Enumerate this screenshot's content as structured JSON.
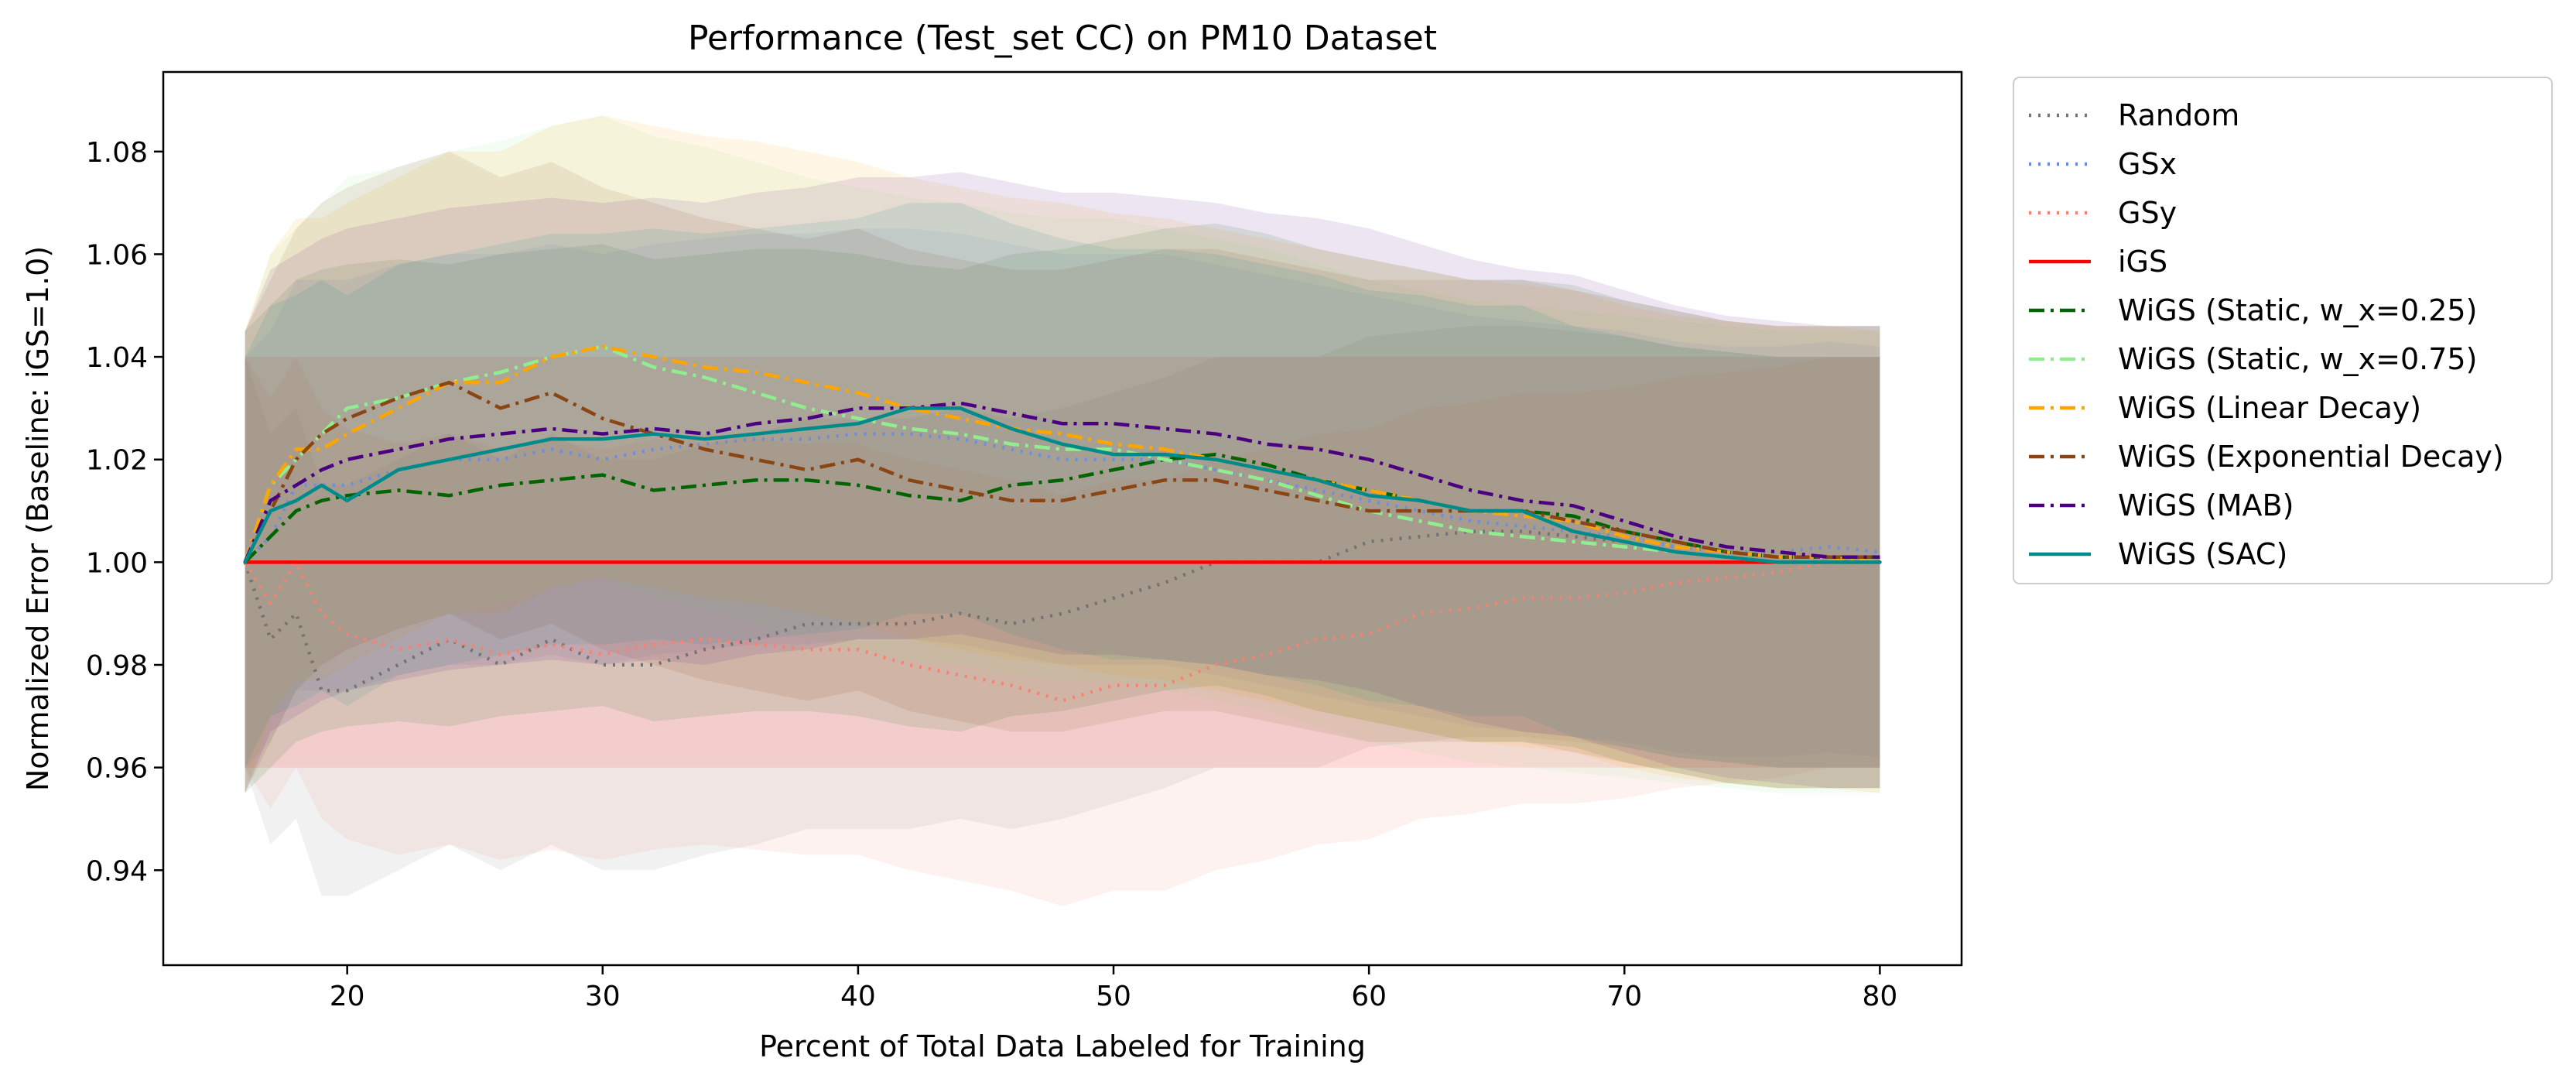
{
  "chart_data": {
    "type": "line",
    "title": "Performance (Test_set CC) on PM10 Dataset",
    "xlabel": "Percent of Total Data Labeled for Training",
    "ylabel": "Normalized Error (Baseline: iGS=1.0)",
    "xlim": [
      12.8,
      83.2
    ],
    "ylim": [
      0.9215,
      1.0955
    ],
    "xticks": [
      20,
      30,
      40,
      50,
      60,
      70,
      80
    ],
    "yticks": [
      0.94,
      0.96,
      0.98,
      1.0,
      1.02,
      1.04,
      1.06,
      1.08
    ],
    "xtick_labels": [
      "20",
      "30",
      "40",
      "50",
      "60",
      "70",
      "80"
    ],
    "ytick_labels": [
      "0.94",
      "0.96",
      "0.98",
      "1.00",
      "1.02",
      "1.04",
      "1.06",
      "1.08"
    ],
    "grid": false,
    "legend_position": "outside-right",
    "x": [
      16,
      17,
      18,
      19,
      20,
      22,
      24,
      26,
      28,
      30,
      32,
      34,
      36,
      38,
      40,
      42,
      44,
      46,
      48,
      50,
      52,
      54,
      56,
      58,
      60,
      62,
      64,
      66,
      68,
      70,
      72,
      74,
      76,
      78,
      80
    ],
    "series": [
      {
        "name": "Random",
        "color": "#737373",
        "dash": "dot",
        "band": 0.04,
        "values": [
          1.0,
          0.985,
          0.99,
          0.975,
          0.975,
          0.98,
          0.985,
          0.98,
          0.985,
          0.98,
          0.98,
          0.983,
          0.985,
          0.988,
          0.988,
          0.988,
          0.99,
          0.988,
          0.99,
          0.993,
          0.996,
          1.0,
          1.0,
          1.0,
          1.004,
          1.005,
          1.006,
          1.006,
          1.005,
          1.004,
          1.002,
          1.001,
          1.0,
          1.0,
          1.0
        ]
      },
      {
        "name": "GSx",
        "color": "#6B8DE3",
        "dash": "dot",
        "band": 0.04,
        "values": [
          1.0,
          1.005,
          1.015,
          1.015,
          1.015,
          1.018,
          1.02,
          1.02,
          1.022,
          1.02,
          1.022,
          1.023,
          1.024,
          1.024,
          1.025,
          1.025,
          1.024,
          1.022,
          1.02,
          1.02,
          1.02,
          1.018,
          1.016,
          1.014,
          1.012,
          1.01,
          1.008,
          1.007,
          1.006,
          1.005,
          1.003,
          1.002,
          1.002,
          1.003,
          1.002
        ]
      },
      {
        "name": "GSy",
        "color": "#FA8072",
        "dash": "dot",
        "band": 0.04,
        "values": [
          1.0,
          0.992,
          1.0,
          0.99,
          0.986,
          0.983,
          0.985,
          0.982,
          0.984,
          0.982,
          0.984,
          0.985,
          0.984,
          0.983,
          0.983,
          0.98,
          0.978,
          0.976,
          0.973,
          0.976,
          0.976,
          0.98,
          0.982,
          0.985,
          0.986,
          0.99,
          0.991,
          0.993,
          0.993,
          0.994,
          0.996,
          0.997,
          0.998,
          1.0,
          1.0
        ]
      },
      {
        "name": "iGS",
        "color": "#FF0000",
        "dash": "solid",
        "band": 0.04,
        "values": [
          1.0,
          1.0,
          1.0,
          1.0,
          1.0,
          1.0,
          1.0,
          1.0,
          1.0,
          1.0,
          1.0,
          1.0,
          1.0,
          1.0,
          1.0,
          1.0,
          1.0,
          1.0,
          1.0,
          1.0,
          1.0,
          1.0,
          1.0,
          1.0,
          1.0,
          1.0,
          1.0,
          1.0,
          1.0,
          1.0,
          1.0,
          1.0,
          1.0,
          1.0,
          1.0
        ]
      },
      {
        "name": "WiGS (Static, w_x=0.25)",
        "color": "#006400",
        "dash": "dashdot",
        "band": 0.045,
        "values": [
          1.0,
          1.005,
          1.01,
          1.012,
          1.013,
          1.014,
          1.013,
          1.015,
          1.016,
          1.017,
          1.014,
          1.015,
          1.016,
          1.016,
          1.015,
          1.013,
          1.012,
          1.015,
          1.016,
          1.018,
          1.02,
          1.021,
          1.019,
          1.016,
          1.014,
          1.012,
          1.01,
          1.01,
          1.009,
          1.006,
          1.004,
          1.002,
          1.001,
          1.001,
          1.001
        ]
      },
      {
        "name": "WiGS (Static, w_x=0.75)",
        "color": "#90EE90",
        "dash": "dashdot",
        "band": 0.045,
        "values": [
          1.0,
          1.015,
          1.02,
          1.025,
          1.03,
          1.032,
          1.035,
          1.037,
          1.04,
          1.042,
          1.038,
          1.036,
          1.033,
          1.03,
          1.028,
          1.026,
          1.025,
          1.023,
          1.022,
          1.022,
          1.02,
          1.018,
          1.016,
          1.013,
          1.01,
          1.008,
          1.006,
          1.005,
          1.004,
          1.003,
          1.002,
          1.001,
          1.0,
          1.0,
          1.0
        ]
      },
      {
        "name": "WiGS (Linear Decay)",
        "color": "#FFA500",
        "dash": "dashdot",
        "band": 0.045,
        "values": [
          1.0,
          1.015,
          1.022,
          1.022,
          1.025,
          1.03,
          1.035,
          1.035,
          1.04,
          1.042,
          1.04,
          1.038,
          1.037,
          1.035,
          1.033,
          1.03,
          1.028,
          1.026,
          1.025,
          1.023,
          1.022,
          1.02,
          1.018,
          1.016,
          1.014,
          1.012,
          1.01,
          1.009,
          1.008,
          1.005,
          1.003,
          1.002,
          1.001,
          1.001,
          1.0
        ]
      },
      {
        "name": "WiGS (Exponential Decay)",
        "color": "#8B4513",
        "dash": "dashdot",
        "band": 0.045,
        "values": [
          1.0,
          1.01,
          1.02,
          1.025,
          1.028,
          1.032,
          1.035,
          1.03,
          1.033,
          1.028,
          1.025,
          1.022,
          1.02,
          1.018,
          1.02,
          1.016,
          1.014,
          1.012,
          1.012,
          1.014,
          1.016,
          1.016,
          1.014,
          1.012,
          1.01,
          1.01,
          1.01,
          1.01,
          1.008,
          1.006,
          1.004,
          1.002,
          1.001,
          1.001,
          1.001
        ]
      },
      {
        "name": "WiGS (MAB)",
        "color": "#4B0082",
        "dash": "dashdot",
        "band": 0.045,
        "values": [
          1.0,
          1.012,
          1.015,
          1.018,
          1.02,
          1.022,
          1.024,
          1.025,
          1.026,
          1.025,
          1.026,
          1.025,
          1.027,
          1.028,
          1.03,
          1.03,
          1.031,
          1.029,
          1.027,
          1.027,
          1.026,
          1.025,
          1.023,
          1.022,
          1.02,
          1.017,
          1.014,
          1.012,
          1.011,
          1.008,
          1.005,
          1.003,
          1.002,
          1.001,
          1.001
        ]
      },
      {
        "name": "WiGS (SAC)",
        "color": "#008B8B",
        "dash": "solid",
        "band": 0.04,
        "values": [
          1.0,
          1.01,
          1.012,
          1.015,
          1.012,
          1.018,
          1.02,
          1.022,
          1.024,
          1.024,
          1.025,
          1.024,
          1.025,
          1.026,
          1.027,
          1.03,
          1.03,
          1.026,
          1.023,
          1.021,
          1.021,
          1.02,
          1.018,
          1.016,
          1.013,
          1.012,
          1.01,
          1.01,
          1.006,
          1.004,
          1.002,
          1.001,
          1.0,
          1.0,
          1.0
        ]
      }
    ]
  }
}
